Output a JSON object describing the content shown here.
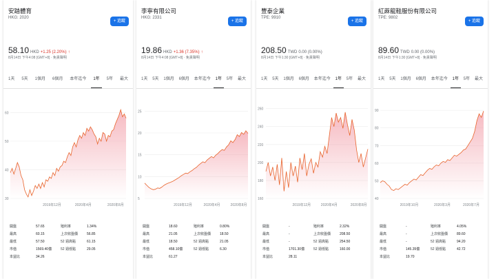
{
  "cards": [
    {
      "name": "安踏體育",
      "ticker": "HKG: 2020",
      "follow": "+ 追蹤",
      "price": "58.10",
      "currency": "HKD",
      "change": "+1.25 (2.20%)",
      "arrow": "↑",
      "dir": "up",
      "timestamp": "8月14日 下午4:08 [GMT+8] · 免責聲明",
      "tabs": [
        "1天",
        "5天",
        "1個月",
        "6個月",
        "本年迄今",
        "1年",
        "5年",
        "最大"
      ],
      "active_tab": 5,
      "chart_data": {
        "type": "area",
        "yticks": [
          30,
          40,
          50,
          60
        ],
        "ylim": [
          30,
          62
        ],
        "xticks": [
          {
            "label": "2019年12月",
            "pos": 0.36
          },
          {
            "label": "2020年4月",
            "pos": 0.63
          },
          {
            "label": "2020年8月",
            "pos": 0.91
          }
        ],
        "values": [
          39,
          40.5,
          38.5,
          40.5,
          42.5,
          41,
          38,
          36.5,
          33,
          31.5,
          30.5,
          33,
          31,
          32.5,
          34.5,
          33.5,
          35,
          33.5,
          35.5,
          34,
          36.5,
          36,
          37.5,
          37,
          39,
          38,
          40.5,
          39.5,
          41,
          41.5,
          43,
          42.5,
          44.5,
          46,
          45,
          48,
          49.5,
          48,
          50.5,
          52,
          51,
          53,
          52,
          54.5,
          53.5,
          55,
          54,
          52.5,
          51.5,
          49,
          51,
          50,
          53,
          52.5,
          50,
          52,
          51.5,
          53.5,
          54,
          56,
          57.5,
          59,
          61,
          58.5,
          59.5,
          58
        ]
      },
      "stats": [
        [
          "開盤",
          "57.65",
          "殖利率",
          "1.34%"
        ],
        [
          "最高",
          "60.15",
          "上次收盤價",
          "56.85"
        ],
        [
          "最低",
          "57.50",
          "52 週高點",
          "61.15"
        ],
        [
          "市值",
          "1569.40億",
          "52 週低點",
          "29.05"
        ],
        [
          "本益比",
          "34.26",
          "",
          ""
        ]
      ]
    },
    {
      "name": "李寧有限公司",
      "ticker": "HKG: 2331",
      "follow": "+ 追蹤",
      "price": "19.86",
      "currency": "HKD",
      "change": "+1.36 (7.35%)",
      "arrow": "↑",
      "dir": "up",
      "timestamp": "8月14日 下午4:08 [GMT+8] · 免責聲明",
      "tabs": [
        "1天",
        "5天",
        "1個月",
        "6個月",
        "本年迄今",
        "1年",
        "5年",
        "最大"
      ],
      "active_tab": 5,
      "chart_data": {
        "type": "area",
        "yticks": [
          5,
          10,
          15,
          20,
          25
        ],
        "ylim": [
          5,
          26
        ],
        "xticks": [
          {
            "label": "2019年12月",
            "pos": 0.37
          },
          {
            "label": "2020年4月",
            "pos": 0.65
          },
          {
            "label": "2020年8月",
            "pos": 0.91
          }
        ],
        "values": [
          8.5,
          8,
          7.5,
          7.2,
          7,
          7.1,
          7.4,
          7.3,
          7.6,
          8,
          8.3,
          8.5,
          8.7,
          8.9,
          9.2,
          9.5,
          9.8,
          10.2,
          10.5,
          10.8,
          10.7,
          11.1,
          11.4,
          11.8,
          12.1,
          12.6,
          13,
          13.4,
          13.2,
          13.8,
          14.2,
          14.6,
          14.3,
          14.9,
          15.3,
          15.8,
          16.2,
          16,
          16.8,
          17.3,
          18.2,
          17.8,
          18.5,
          19.6,
          19.2,
          20.1,
          19.7,
          20.5,
          19.9
        ]
      },
      "stats": [
        [
          "開盤",
          "18.60",
          "殖利率",
          "0.80%"
        ],
        [
          "最高",
          "21.05",
          "上次收盤價",
          "18.50"
        ],
        [
          "最低",
          "18.50",
          "52 週高點",
          "21.05"
        ],
        [
          "市值",
          "458.10億",
          "52 週低點",
          "6.30"
        ],
        [
          "本益比",
          "61.27",
          "",
          ""
        ]
      ]
    },
    {
      "name": "豐泰企業",
      "ticker": "TPE: 9910",
      "follow": "+ 追蹤",
      "price": "208.50",
      "currency": "TWD",
      "change": "0.00 (0.00%)",
      "arrow": "",
      "dir": "flat",
      "timestamp": "8月14日 下午1:30 [GMT+8] · 免責聲明",
      "tabs": [
        "1天",
        "5天",
        "1個月",
        "6個月",
        "本年迄今",
        "1年",
        "5年",
        "最大"
      ],
      "active_tab": 5,
      "chart_data": {
        "type": "area",
        "yticks": [
          160,
          180,
          200,
          220,
          240,
          260
        ],
        "ylim": [
          160,
          262
        ],
        "xticks": [
          {
            "label": "2019年12月",
            "pos": 0.35
          },
          {
            "label": "2020年4月",
            "pos": 0.62
          },
          {
            "label": "2020年8月",
            "pos": 0.91
          }
        ],
        "values": [
          190,
          200,
          185,
          195,
          180,
          198,
          175,
          205,
          168,
          190,
          172,
          200,
          185,
          196,
          178,
          205,
          192,
          210,
          185,
          198,
          204,
          188,
          200,
          195,
          212,
          206,
          218,
          210,
          230,
          250,
          240,
          255,
          245,
          250,
          238,
          256,
          242,
          230,
          248,
          236,
          214,
          200,
          210,
          195,
          205,
          215
        ]
      },
      "stats": [
        [
          "開盤",
          "-",
          "殖利率",
          "2.32%"
        ],
        [
          "最高",
          "-",
          "上次收盤價",
          "208.50"
        ],
        [
          "最低",
          "-",
          "52 週高點",
          "254.50"
        ],
        [
          "市值",
          "1701.30億",
          "52 週低點",
          "160.00"
        ],
        [
          "本益比",
          "28.11",
          "",
          ""
        ]
      ]
    },
    {
      "name": "紅蔴龍鞋服份有限公司",
      "ticker": "TPE: 9802",
      "follow": "+ 追蹤",
      "price": "89.60",
      "currency": "TWD",
      "change": "0.00 (0.00%)",
      "arrow": "",
      "dir": "flat",
      "timestamp": "8月14日 下午1:30 [GMT+8] · 免責聲明",
      "tabs": [
        "1天",
        "5天",
        "1個月",
        "6個月",
        "本年迄今",
        "1年",
        "5年",
        "最大"
      ],
      "active_tab": 5,
      "chart_data": {
        "type": "area",
        "yticks": [
          40,
          50,
          60,
          70,
          80,
          90
        ],
        "ylim": [
          40,
          92
        ],
        "xticks": [
          {
            "label": "2019年10月",
            "pos": 0.28
          },
          {
            "label": "2020年3月",
            "pos": 0.6
          },
          {
            "label": "2020年7月",
            "pos": 0.88
          }
        ],
        "values": [
          49,
          50,
          49.5,
          48,
          47,
          45,
          44.5,
          45.5,
          45,
          46,
          47,
          48,
          47.5,
          49,
          50,
          51,
          50.5,
          52,
          53.5,
          53,
          54.5,
          56,
          57,
          56.5,
          58,
          59,
          58.5,
          60,
          61,
          60.5,
          62,
          61.5,
          63,
          64.5,
          64,
          65,
          66,
          67.5,
          68,
          70,
          72,
          74,
          78,
          84,
          88,
          86,
          89.6
        ]
      },
      "stats": [
        [
          "開盤",
          "-",
          "殖利率",
          "4.05%"
        ],
        [
          "最高",
          "-",
          "上次收盤價",
          "89.60"
        ],
        [
          "最低",
          "-",
          "52 週高點",
          "94.20"
        ],
        [
          "市值",
          "145.35億",
          "52 週低點",
          "42.72"
        ],
        [
          "本益比",
          "19.70",
          "",
          ""
        ]
      ]
    }
  ],
  "colors": {
    "accent": "#1a73e8",
    "line": "#e8632b",
    "fill": "#f3a3ad",
    "up": "#d93025"
  }
}
